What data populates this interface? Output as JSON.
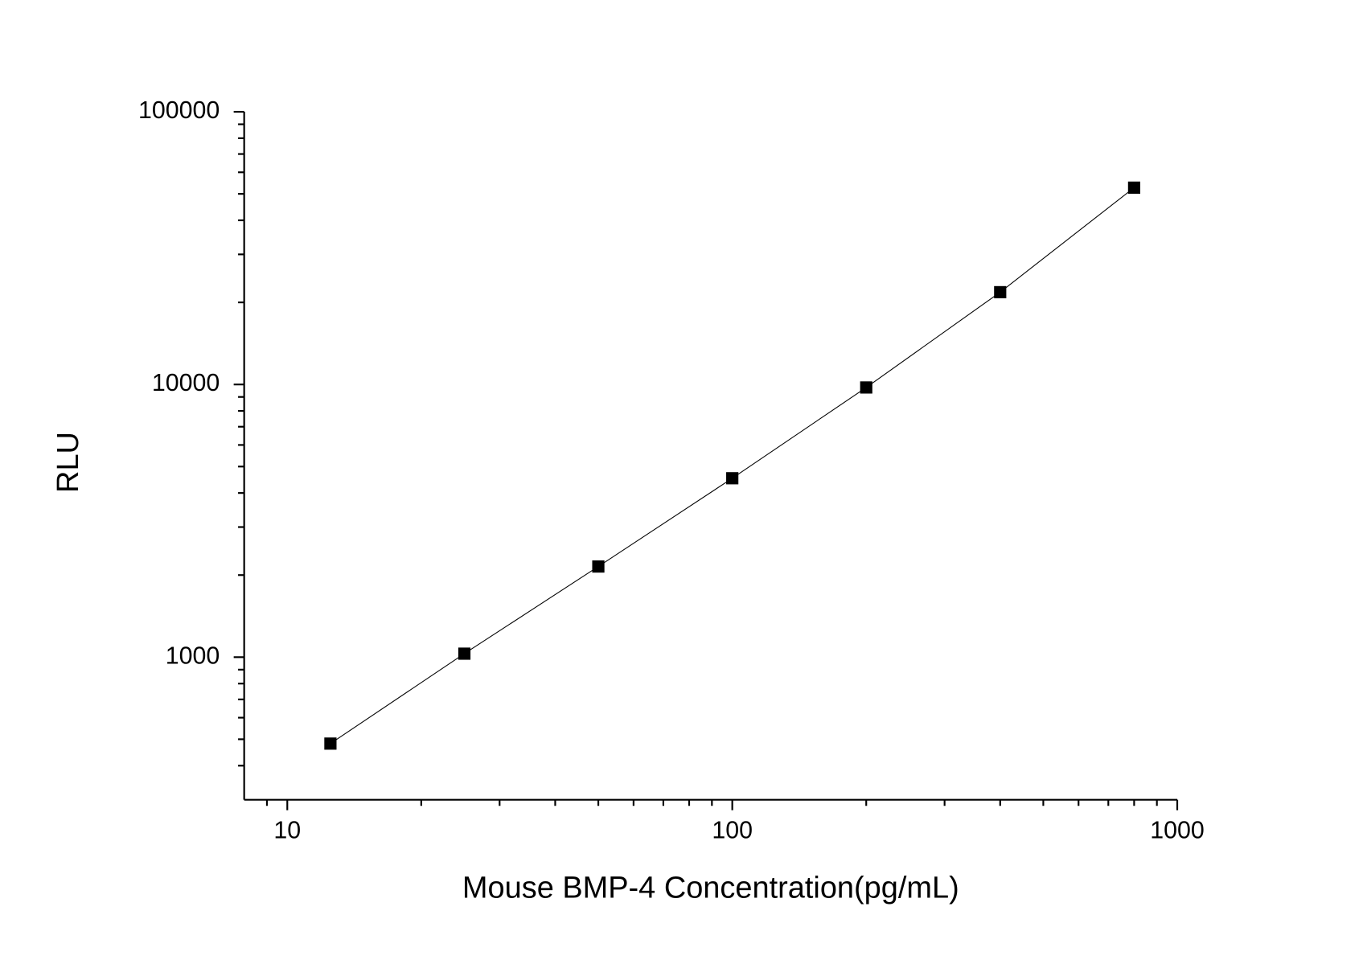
{
  "chart_data": {
    "type": "scatter-line",
    "x_label": "Mouse BMP-4 Concentration(pg/mL)",
    "y_label": "RLU",
    "x": [
      12.5,
      25,
      50,
      100,
      200,
      400,
      800
    ],
    "values": [
      482,
      1030,
      2150,
      4530,
      9750,
      21800,
      52700
    ],
    "color": "#000000",
    "x_log": true,
    "y_log": true,
    "xlim": [
      8,
      1000
    ],
    "ylim": [
      300,
      100000
    ],
    "xticks": [
      10,
      100,
      1000
    ],
    "yticks": [
      1000,
      10000,
      100000
    ],
    "xminorticks": [
      9,
      20,
      30,
      40,
      50,
      60,
      70,
      80,
      90,
      200,
      300,
      400,
      500,
      600,
      700,
      800,
      900
    ],
    "yminorticks": [
      400,
      500,
      600,
      700,
      800,
      900,
      2000,
      3000,
      4000,
      5000,
      6000,
      7000,
      8000,
      9000,
      20000,
      30000,
      40000,
      50000,
      60000,
      70000,
      80000,
      90000
    ]
  }
}
